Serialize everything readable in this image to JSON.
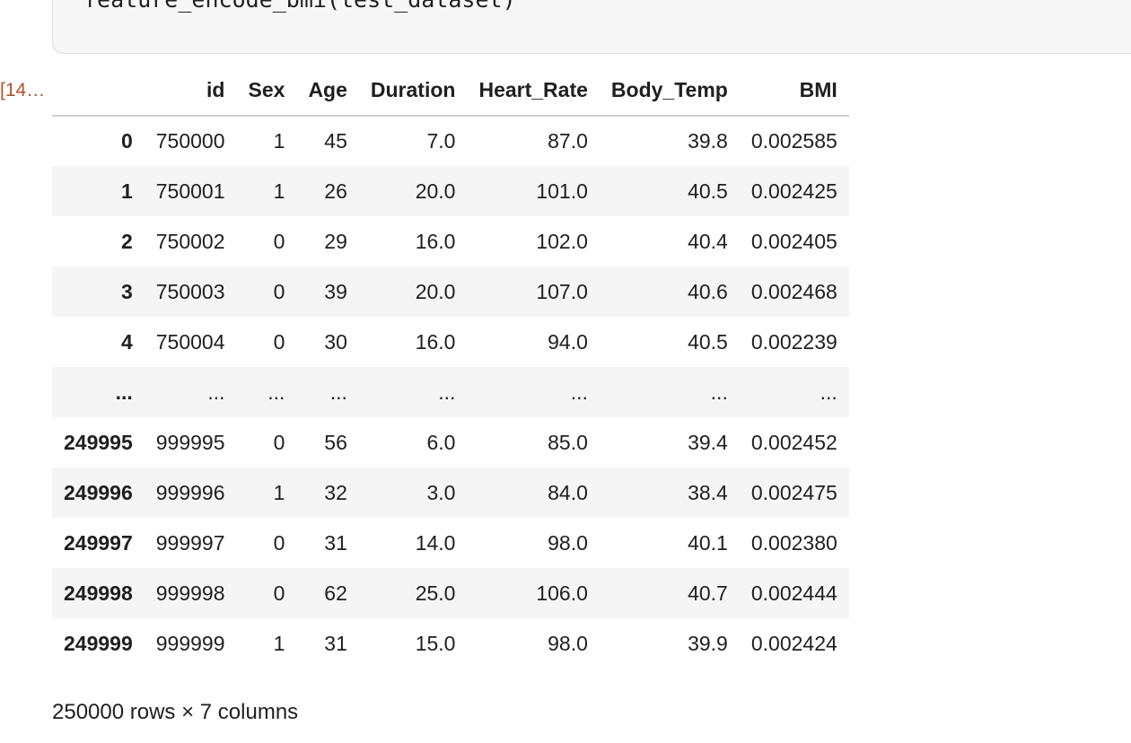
{
  "code_cell": {
    "code": "feature_encode_bmi(test_dataset)"
  },
  "output": {
    "execution_count": "[14…",
    "table": {
      "columns": [
        "",
        "id",
        "Sex",
        "Age",
        "Duration",
        "Heart_Rate",
        "Body_Temp",
        "BMI"
      ],
      "rows": [
        [
          "0",
          "750000",
          "1",
          "45",
          "7.0",
          "87.0",
          "39.8",
          "0.002585"
        ],
        [
          "1",
          "750001",
          "1",
          "26",
          "20.0",
          "101.0",
          "40.5",
          "0.002425"
        ],
        [
          "2",
          "750002",
          "0",
          "29",
          "16.0",
          "102.0",
          "40.4",
          "0.002405"
        ],
        [
          "3",
          "750003",
          "0",
          "39",
          "20.0",
          "107.0",
          "40.6",
          "0.002468"
        ],
        [
          "4",
          "750004",
          "0",
          "30",
          "16.0",
          "94.0",
          "40.5",
          "0.002239"
        ],
        [
          "...",
          "...",
          "...",
          "...",
          "...",
          "...",
          "...",
          "..."
        ],
        [
          "249995",
          "999995",
          "0",
          "56",
          "6.0",
          "85.0",
          "39.4",
          "0.002452"
        ],
        [
          "249996",
          "999996",
          "1",
          "32",
          "3.0",
          "84.0",
          "38.4",
          "0.002475"
        ],
        [
          "249997",
          "999997",
          "0",
          "31",
          "14.0",
          "98.0",
          "40.1",
          "0.002380"
        ],
        [
          "249998",
          "999998",
          "0",
          "62",
          "25.0",
          "106.0",
          "40.7",
          "0.002444"
        ],
        [
          "249999",
          "999999",
          "1",
          "31",
          "15.0",
          "98.0",
          "39.9",
          "0.002424"
        ]
      ]
    },
    "summary": "250000 rows × 7 columns"
  }
}
